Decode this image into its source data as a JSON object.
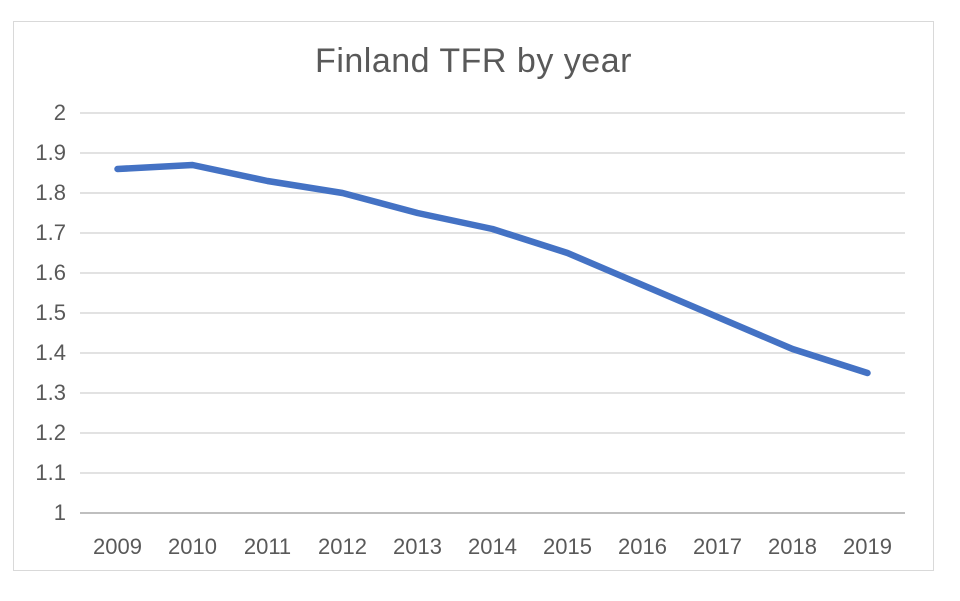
{
  "chart": {
    "title": "Finland TFR by year"
  },
  "chart_data": {
    "type": "line",
    "title": "Finland TFR by year",
    "categories": [
      "2009",
      "2010",
      "2011",
      "2012",
      "2013",
      "2014",
      "2015",
      "2016",
      "2017",
      "2018",
      "2019"
    ],
    "series": [
      {
        "name": "Finland TFR",
        "values": [
          1.86,
          1.87,
          1.83,
          1.8,
          1.75,
          1.71,
          1.65,
          1.57,
          1.49,
          1.41,
          1.35
        ]
      }
    ],
    "xlabel": "",
    "ylabel": "",
    "ylim": [
      1,
      2
    ],
    "ytick_step": 0.1,
    "grid": true,
    "legend_position": "none",
    "colors": {
      "line": "#4472C4",
      "gridline": "#d9d9d9",
      "axis_line": "#bfbfbf",
      "text": "#595959",
      "frame_border": "#d9d9d9",
      "background": "#ffffff"
    }
  }
}
